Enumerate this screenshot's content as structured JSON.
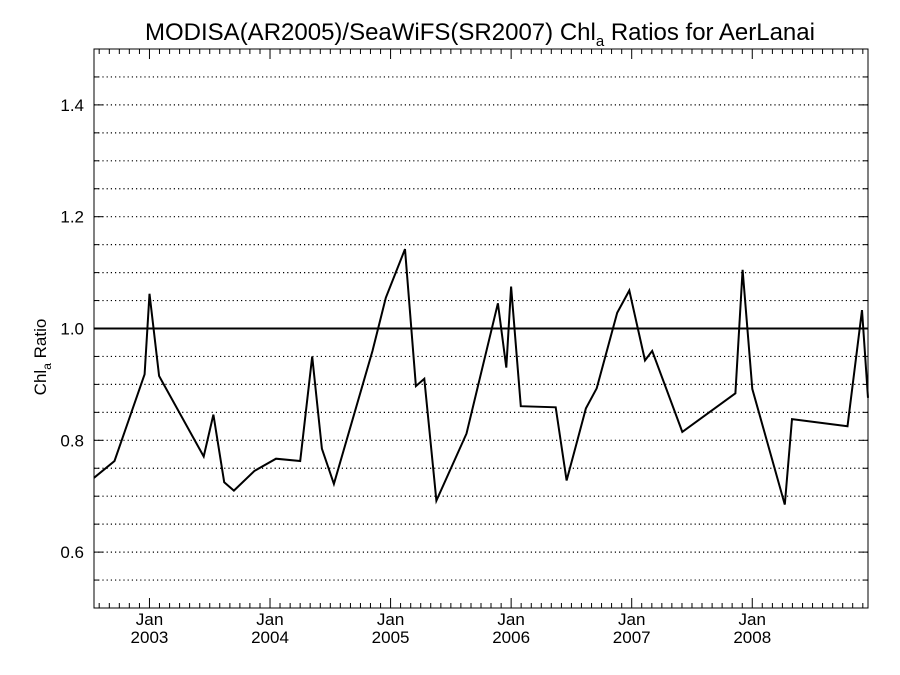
{
  "chart_data": {
    "type": "line",
    "title_main": "MODISA(AR2005)/SeaWiFS(SR2007)  Chl",
    "title_sub": "a",
    "title_rest": " Ratios for AerLanai",
    "ylabel_main": "Chl",
    "ylabel_sub": "a",
    "ylabel_rest": " Ratio",
    "xlim": [
      2002.54,
      2008.96
    ],
    "ylim": [
      0.5,
      1.5
    ],
    "grid": true,
    "grid_step": 0.05,
    "reference_line": 1.0,
    "y_ticks": [
      {
        "value": 0.6,
        "label": "0.6"
      },
      {
        "value": 0.8,
        "label": "0.8"
      },
      {
        "value": 1.0,
        "label": "1.0"
      },
      {
        "value": 1.2,
        "label": "1.2"
      },
      {
        "value": 1.4,
        "label": "1.4"
      }
    ],
    "x_ticks": [
      {
        "value": 2003.0,
        "month": "Jan",
        "year": "2003"
      },
      {
        "value": 2004.0,
        "month": "Jan",
        "year": "2004"
      },
      {
        "value": 2005.0,
        "month": "Jan",
        "year": "2005"
      },
      {
        "value": 2006.0,
        "month": "Jan",
        "year": "2006"
      },
      {
        "value": 2007.0,
        "month": "Jan",
        "year": "2007"
      },
      {
        "value": 2008.0,
        "month": "Jan",
        "year": "2008"
      }
    ],
    "x_minor_ticks": [
      2002.583,
      2002.667,
      2002.75,
      2002.833,
      2002.917,
      2003.083,
      2003.167,
      2003.25,
      2003.333,
      2003.417,
      2003.5,
      2003.583,
      2003.667,
      2003.75,
      2003.833,
      2003.917,
      2004.083,
      2004.167,
      2004.25,
      2004.333,
      2004.417,
      2004.5,
      2004.583,
      2004.667,
      2004.75,
      2004.833,
      2004.917,
      2005.083,
      2005.167,
      2005.25,
      2005.333,
      2005.417,
      2005.5,
      2005.583,
      2005.667,
      2005.75,
      2005.833,
      2005.917,
      2006.083,
      2006.167,
      2006.25,
      2006.333,
      2006.417,
      2006.5,
      2006.583,
      2006.667,
      2006.75,
      2006.833,
      2006.917,
      2007.083,
      2007.167,
      2007.25,
      2007.333,
      2007.417,
      2007.5,
      2007.583,
      2007.667,
      2007.75,
      2007.833,
      2007.917,
      2008.083,
      2008.167,
      2008.25,
      2008.333,
      2008.417,
      2008.5,
      2008.583,
      2008.667,
      2008.75,
      2008.833,
      2008.917
    ],
    "series": [
      {
        "x": [
          2002.54,
          2002.71,
          2002.96,
          2003.0,
          2003.08,
          2003.45,
          2003.53,
          2003.62,
          2003.7,
          2003.87,
          2004.05,
          2004.25,
          2004.35,
          2004.43,
          2004.53,
          2004.85,
          2004.96,
          2005.12,
          2005.21,
          2005.28,
          2005.38,
          2005.63,
          2005.89,
          2005.96,
          2006.0,
          2006.08,
          2006.37,
          2006.46,
          2006.54,
          2006.62,
          2006.71,
          2006.88,
          2006.98,
          2007.11,
          2007.17,
          2007.42,
          2007.86,
          2007.92,
          2008.0,
          2008.27,
          2008.33,
          2008.79,
          2008.91,
          2008.96
        ],
        "y": [
          0.733,
          0.763,
          0.918,
          1.062,
          0.915,
          0.771,
          0.846,
          0.725,
          0.71,
          0.745,
          0.767,
          0.763,
          0.95,
          0.785,
          0.722,
          0.96,
          1.055,
          1.142,
          0.897,
          0.91,
          0.692,
          0.812,
          1.045,
          0.93,
          1.075,
          0.861,
          0.859,
          0.728,
          0.792,
          0.857,
          0.893,
          1.028,
          1.068,
          0.943,
          0.96,
          0.815,
          0.884,
          1.105,
          0.892,
          0.685,
          0.838,
          0.825,
          1.033,
          0.876
        ]
      }
    ]
  }
}
